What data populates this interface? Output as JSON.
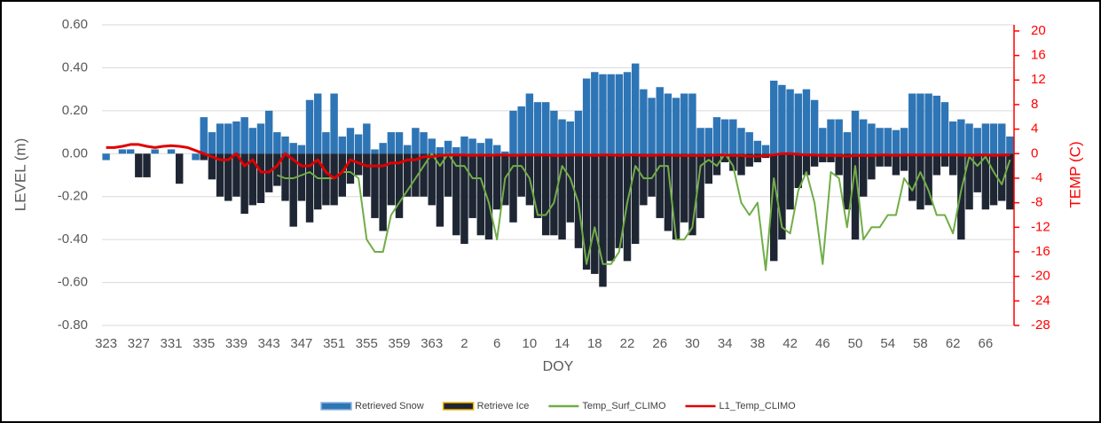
{
  "chart_data": {
    "type": "bar",
    "x_label": "DOY",
    "y_label": "LEVEL (m)",
    "y2_label": "TEMP (C)",
    "categories": [
      323,
      null,
      null,
      null,
      327,
      null,
      null,
      null,
      331,
      null,
      null,
      null,
      335,
      null,
      null,
      null,
      339,
      null,
      null,
      null,
      343,
      null,
      null,
      null,
      347,
      null,
      null,
      null,
      351,
      null,
      null,
      null,
      355,
      null,
      null,
      null,
      359,
      null,
      null,
      null,
      363,
      null,
      null,
      null,
      2,
      null,
      null,
      null,
      6,
      null,
      null,
      null,
      10,
      null,
      null,
      null,
      14,
      null,
      null,
      null,
      18,
      null,
      null,
      null,
      22,
      null,
      null,
      null,
      26,
      null,
      null,
      null,
      30,
      null,
      null,
      null,
      34,
      null,
      null,
      null,
      38,
      null,
      null,
      null,
      42,
      null,
      null,
      null,
      46,
      null,
      null,
      null,
      50,
      null,
      null,
      null,
      54,
      null,
      null,
      null,
      58,
      null,
      null,
      null,
      62,
      null,
      null,
      null,
      66,
      null,
      null,
      null
    ],
    "ylim": [
      -0.8,
      0.6
    ],
    "yticks": [
      {
        "value": -0.8,
        "label": "-0.80"
      },
      {
        "value": -0.6,
        "label": "-0.60"
      },
      {
        "value": -0.4,
        "label": "-0.40"
      },
      {
        "value": -0.2,
        "label": "-0.20"
      },
      {
        "value": 0,
        "label": "0.00"
      },
      {
        "value": 0.2,
        "label": "0.20"
      },
      {
        "value": 0.4,
        "label": "0.40"
      },
      {
        "value": 0.6,
        "label": "0.60"
      }
    ],
    "y2lim": [
      -28,
      21
    ],
    "y2ticks": [
      -28,
      -24,
      -20,
      -16,
      -12,
      -8,
      -4,
      0,
      4,
      8,
      12,
      16,
      20
    ],
    "grid": true,
    "series": [
      {
        "name": "Retrieved Snow",
        "type": "bar",
        "color": "#2e75b6",
        "values": [
          -0.03,
          0,
          0.02,
          0.02,
          0,
          0,
          0.02,
          0,
          0.02,
          0,
          0,
          -0.03,
          0.17,
          0.1,
          0.14,
          0.14,
          0.15,
          0.17,
          0.12,
          0.14,
          0.2,
          0.1,
          0.08,
          0.05,
          0.04,
          0.25,
          0.28,
          0.1,
          0.28,
          0.08,
          0.12,
          0.09,
          0.14,
          0.02,
          0.05,
          0.1,
          0.1,
          0.04,
          0.12,
          0.1,
          0.07,
          0.03,
          0.06,
          0.03,
          0.08,
          0.07,
          0.05,
          0.07,
          0.04,
          0.01,
          0.2,
          0.22,
          0.28,
          0.24,
          0.24,
          0.2,
          0.16,
          0.15,
          0.2,
          0.35,
          0.38,
          0.37,
          0.37,
          0.37,
          0.38,
          0.42,
          0.3,
          0.26,
          0.31,
          0.28,
          0.26,
          0.28,
          0.28,
          0.12,
          0.12,
          0.17,
          0.16,
          0.16,
          0.12,
          0.1,
          0.06,
          0.04,
          0.34,
          0.32,
          0.3,
          0.28,
          0.3,
          0.25,
          0.12,
          0.16,
          0.16,
          0.1,
          0.2,
          0.16,
          0.14,
          0.12,
          0.12,
          0.11,
          0.12,
          0.28,
          0.28,
          0.28,
          0.27,
          0.24,
          0.15,
          0.16,
          0.14,
          0.12,
          0.14,
          0.14,
          0.14,
          0.08
        ]
      },
      {
        "name": "Retrieve Ice",
        "type": "bar",
        "color": "#1f2633",
        "values": [
          0,
          0,
          0,
          0,
          -0.11,
          -0.11,
          0,
          0,
          0,
          -0.14,
          0,
          0,
          -0.03,
          -0.12,
          -0.2,
          -0.22,
          -0.2,
          -0.28,
          -0.24,
          -0.23,
          -0.18,
          -0.15,
          -0.22,
          -0.34,
          -0.22,
          -0.32,
          -0.26,
          -0.24,
          -0.24,
          -0.2,
          -0.14,
          -0.1,
          -0.2,
          -0.3,
          -0.36,
          -0.24,
          -0.3,
          -0.2,
          -0.2,
          -0.2,
          -0.24,
          -0.34,
          -0.2,
          -0.38,
          -0.42,
          -0.3,
          -0.38,
          -0.4,
          -0.26,
          -0.24,
          -0.32,
          -0.2,
          -0.24,
          -0.3,
          -0.38,
          -0.38,
          -0.4,
          -0.32,
          -0.44,
          -0.54,
          -0.56,
          -0.62,
          -0.5,
          -0.44,
          -0.5,
          -0.42,
          -0.24,
          -0.2,
          -0.3,
          -0.36,
          -0.4,
          -0.32,
          -0.38,
          -0.3,
          -0.14,
          -0.1,
          -0.04,
          -0.08,
          -0.1,
          -0.06,
          -0.04,
          -0.02,
          -0.5,
          -0.4,
          -0.26,
          -0.16,
          -0.1,
          -0.06,
          -0.04,
          -0.04,
          -0.1,
          -0.26,
          -0.4,
          -0.2,
          -0.12,
          -0.06,
          -0.06,
          -0.1,
          -0.08,
          -0.22,
          -0.26,
          -0.24,
          -0.1,
          -0.06,
          -0.1,
          -0.4,
          -0.26,
          -0.18,
          -0.26,
          -0.24,
          -0.22,
          -0.26
        ]
      },
      {
        "name": "Temp_Surf_CLIMO",
        "type": "line",
        "axis": "y2",
        "color": "#70ad47",
        "values": [
          null,
          null,
          null,
          null,
          null,
          null,
          null,
          null,
          null,
          null,
          null,
          null,
          null,
          null,
          null,
          null,
          null,
          null,
          null,
          null,
          null,
          -3.5,
          -4,
          -4,
          -3.5,
          -3,
          -4,
          -4,
          -4,
          -3,
          -3,
          -4,
          -14,
          -16,
          -16,
          -10,
          -8,
          -6,
          -4,
          -2,
          0,
          -2,
          0,
          -2,
          -2,
          -4,
          -4,
          -8,
          -14,
          -4,
          -2,
          -2,
          -4,
          -10,
          -10,
          -8,
          -2,
          -4,
          -8,
          -18,
          -12,
          -18,
          -18,
          -16,
          -8,
          -2,
          -4,
          -4,
          -2,
          -2,
          -14,
          -14,
          -12,
          -2,
          -1,
          -2,
          0,
          -2,
          -8,
          -10,
          -8,
          -19,
          -4,
          -12,
          -13,
          -6,
          -3,
          -8,
          -18,
          -3,
          -4,
          -12,
          -2,
          -14,
          -12,
          -12,
          -10,
          -10,
          -4,
          -6,
          -3,
          -6,
          -10,
          -10,
          -13,
          -6,
          -0.5,
          -2,
          -0.5,
          -3,
          -5,
          -1
        ]
      },
      {
        "name": "L1_Temp_CLIMO",
        "type": "line",
        "axis": "y2",
        "color": "#e00000",
        "values": [
          1,
          1,
          1.2,
          1.5,
          1.5,
          1.2,
          1,
          1.2,
          1.3,
          1.2,
          1,
          0.5,
          0,
          -0.5,
          -1,
          -1,
          0,
          -2,
          -1,
          -3,
          -3,
          -2,
          0,
          -1,
          -2,
          -2,
          -1,
          -3,
          -4,
          -3,
          -1,
          -1.5,
          -2,
          -2,
          -2,
          -1.5,
          -1.5,
          -1,
          -1,
          -0.5,
          -0.5,
          -0.3,
          -0.2,
          -0.2,
          -0.2,
          -0.3,
          -0.2,
          -0.3,
          -0.2,
          -0.2,
          -0.3,
          -0.2,
          -0.2,
          -0.2,
          -0.2,
          -0.3,
          -0.3,
          -0.2,
          -0.2,
          -0.2,
          -0.3,
          -0.2,
          -0.2,
          -0.3,
          -0.2,
          -0.2,
          -0.3,
          -0.3,
          -0.2,
          -0.2,
          -0.3,
          -0.3,
          -0.3,
          -0.3,
          -0.3,
          -0.2,
          -0.2,
          -0.3,
          -0.3,
          -0.4,
          -0.4,
          -0.3,
          -0.2,
          0,
          0,
          -0.1,
          -0.2,
          -0.2,
          -0.3,
          -0.3,
          -0.3,
          -0.4,
          -0.3,
          -0.3,
          -0.3,
          -0.2,
          -0.2,
          -0.3,
          -0.2,
          -0.2,
          -0.2,
          -0.2,
          -0.2,
          -0.2,
          -0.2,
          -0.2,
          -0.3,
          -0.2,
          -0.2,
          -0.3,
          -0.2,
          -0.2
        ]
      }
    ]
  }
}
